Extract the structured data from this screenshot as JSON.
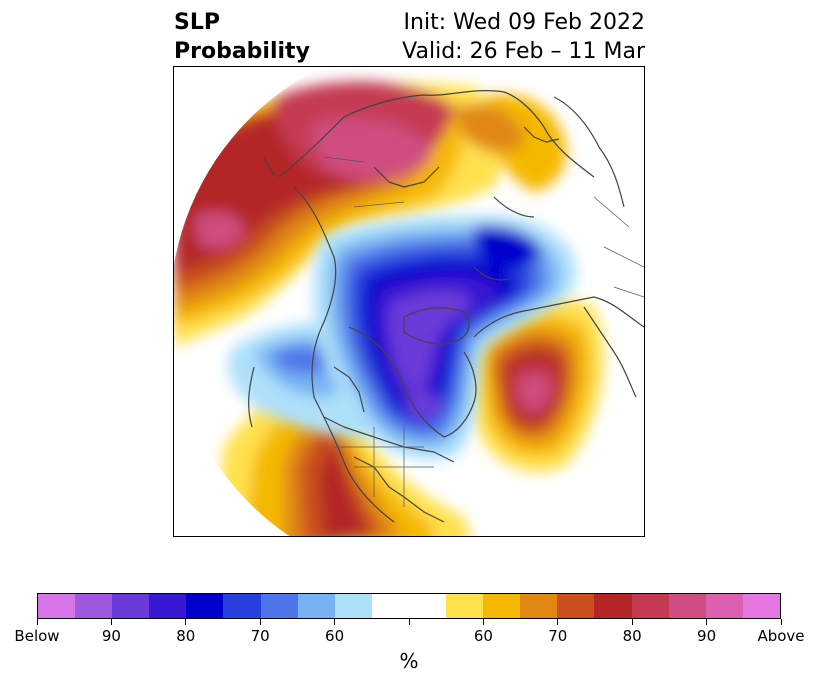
{
  "title": {
    "left_line1": "SLP",
    "left_line2": "Probability",
    "right_line1": "Init: Wed 09 Feb 2022",
    "right_line2": "Valid: 26 Feb – 11 Mar"
  },
  "colorbar": {
    "colors": [
      "#d775e8",
      "#9f58e0",
      "#6a3ad8",
      "#3818d2",
      "#0000cc",
      "#2840dd",
      "#4f76e8",
      "#77b2f2",
      "#aee0fa",
      "#ffffff",
      "#ffffff",
      "#ffe14d",
      "#f5b800",
      "#e08712",
      "#c9501b",
      "#b42525",
      "#c43a52",
      "#cf4d80",
      "#dd60b0",
      "#e676e0"
    ],
    "tick_labels": [
      "Below",
      "90",
      "80",
      "70",
      "60",
      "",
      "60",
      "70",
      "80",
      "90",
      "Above"
    ],
    "unit": "%"
  }
}
